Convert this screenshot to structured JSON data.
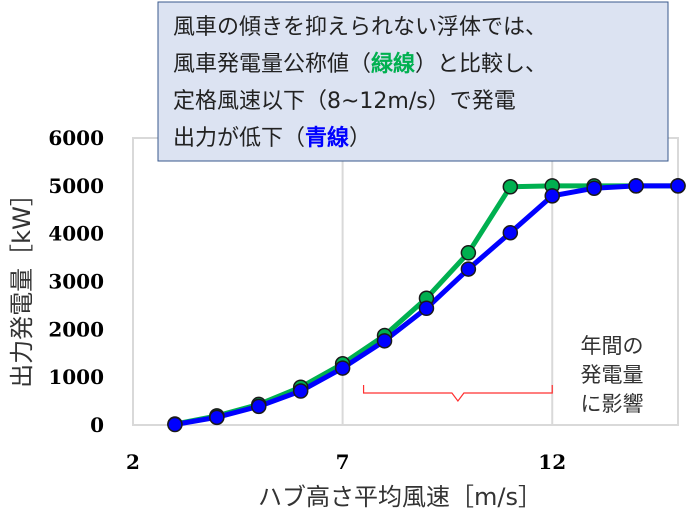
{
  "chart_data": {
    "type": "line",
    "xlabel": "ハブ高さ平均風速［m/s］",
    "ylabel": "出力発電量［kW］",
    "xlim": [
      2,
      15
    ],
    "ylim": [
      0,
      6000
    ],
    "x_ticks": [
      "2",
      "7",
      "12"
    ],
    "y_ticks": [
      "0",
      "1000",
      "2000",
      "3000",
      "4000",
      "5000",
      "6000"
    ],
    "grid": true,
    "series": [
      {
        "color": "#00b050",
        "x": [
          3,
          4,
          5,
          6,
          7,
          8,
          9,
          10,
          11,
          12,
          13,
          14,
          15
        ],
        "values": [
          20,
          190,
          430,
          790,
          1280,
          1870,
          2650,
          3600,
          4980,
          5000,
          5000,
          5000,
          5000
        ]
      },
      {
        "color": "#0000ff",
        "x": [
          3,
          4,
          5,
          6,
          7,
          8,
          9,
          10,
          11,
          12,
          13,
          14,
          15
        ],
        "values": [
          10,
          160,
          390,
          710,
          1190,
          1760,
          2440,
          3260,
          4020,
          4790,
          4950,
          5000,
          5000
        ]
      }
    ],
    "callout": {
      "lines": [
        [
          {
            "text": "風車の傾きを抑えられない浮体では、"
          }
        ],
        [
          {
            "text": "風車発電量公称値（"
          },
          {
            "text": "緑線",
            "color": "#00b050"
          },
          {
            "text": "）と比較し、"
          }
        ],
        [
          {
            "text": "定格風速以下（8~12m/s）で発電"
          }
        ],
        [
          {
            "text": "出力が低下（"
          },
          {
            "text": "青線",
            "color": "#0000ff"
          },
          {
            "text": "）"
          }
        ]
      ]
    },
    "annotation": {
      "lines": [
        "年間の",
        "発電量",
        "に影響"
      ],
      "bracket_range": [
        7.5,
        12
      ]
    }
  }
}
